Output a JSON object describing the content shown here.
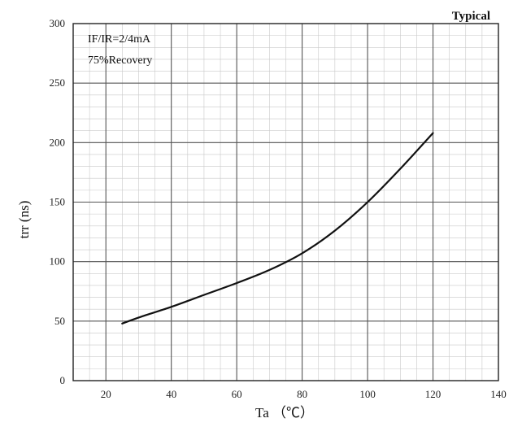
{
  "chart_data": {
    "type": "line",
    "title": "",
    "corner_label": "Typical",
    "annotations": [
      "IF/IR=2/4mA",
      "75%Recovery"
    ],
    "xlabel": "Ta （℃）",
    "ylabel": "trr (ns)",
    "xlim": [
      10,
      140
    ],
    "ylim": [
      0,
      300
    ],
    "xticks": [
      20,
      40,
      60,
      80,
      100,
      120,
      140
    ],
    "yticks": [
      0,
      50,
      100,
      150,
      200,
      250,
      300
    ],
    "grid": true,
    "series": [
      {
        "x": [
          25,
          30,
          40,
          50,
          60,
          70,
          80,
          90,
          100,
          110,
          120
        ],
        "y": [
          48,
          53,
          62,
          72,
          82,
          93,
          107,
          126,
          150,
          178,
          208
        ]
      }
    ]
  }
}
